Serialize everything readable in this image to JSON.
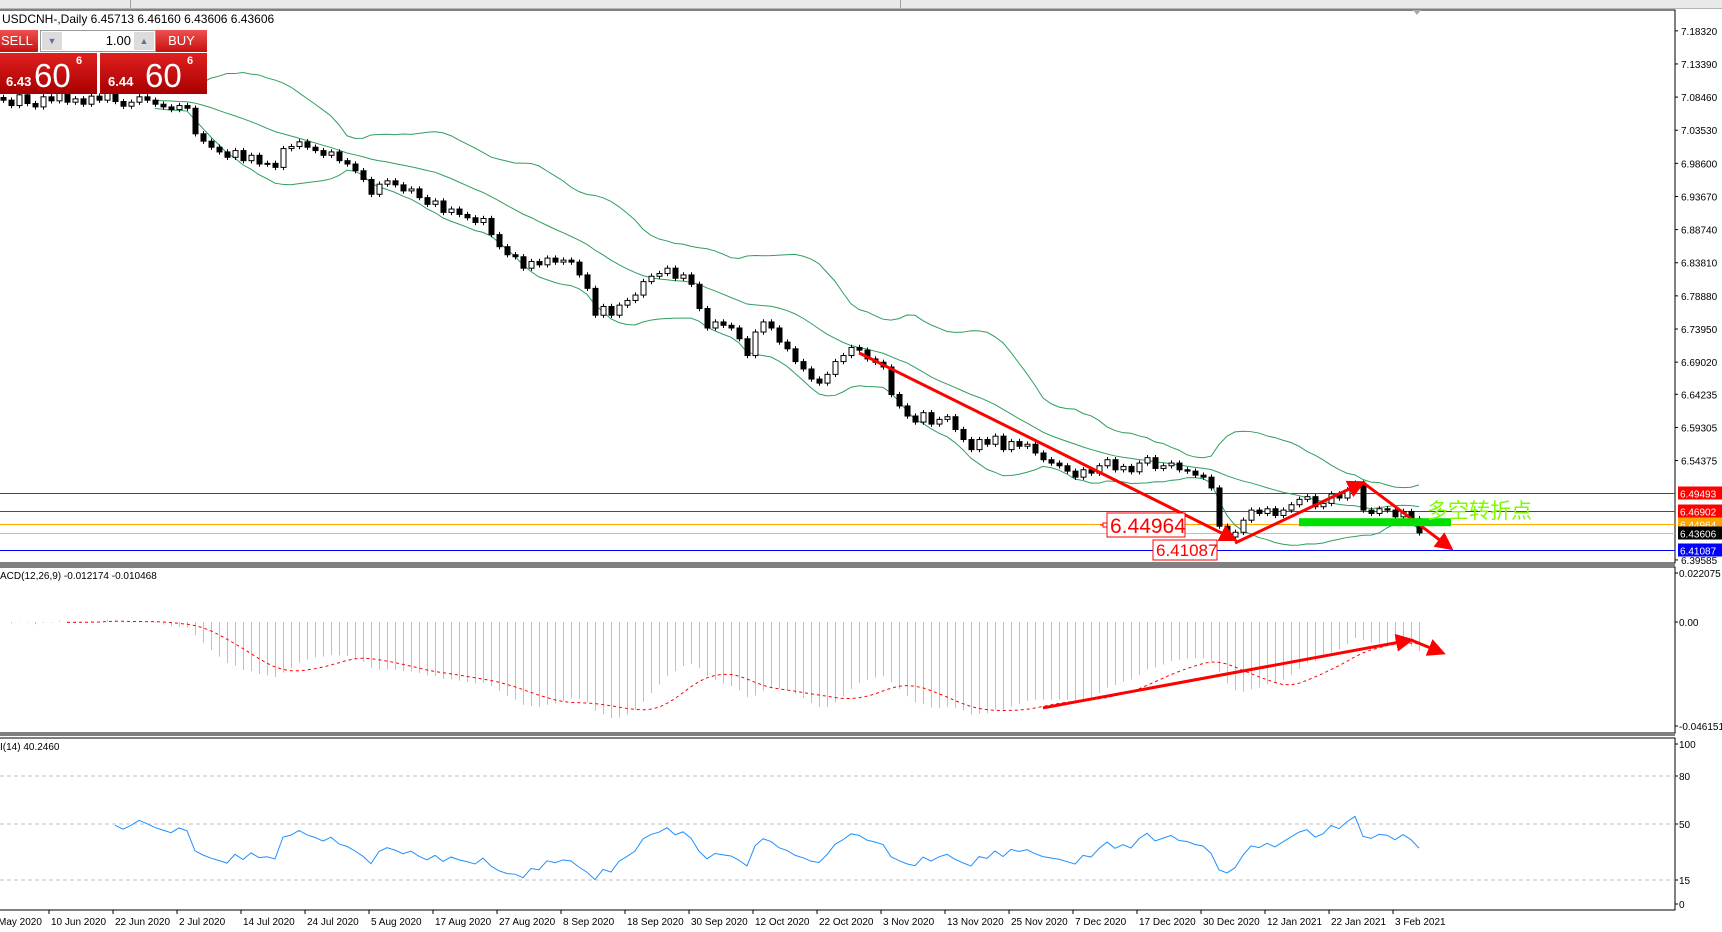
{
  "window": {
    "symbol_line": "USDCNH-,Daily  6.45713 6.46160 6.43606 6.43606"
  },
  "trade_panel": {
    "sell_label": "SELL",
    "buy_label": "BUY",
    "lot": "1.00",
    "sell_price": {
      "big": "6.43",
      "mid": "60",
      "sup": "6"
    },
    "buy_price": {
      "big": "6.44",
      "mid": "60",
      "sup": "6"
    }
  },
  "colors": {
    "bollinger": "#2f9e5e",
    "annotation": "#ff0000",
    "support_bar": "#00e000",
    "rsi": "#1e90ff",
    "macd_hist": "#c0c0c0",
    "macd_signal": "#ff0000"
  },
  "chart_data": {
    "type": "candlestick",
    "symbol": "USDCNH-",
    "timeframe": "Daily",
    "close": [
      7.08,
      7.072,
      7.088,
      7.075,
      7.07,
      7.085,
      7.079,
      7.09,
      7.077,
      7.082,
      7.074,
      7.086,
      7.08,
      7.09,
      7.078,
      7.071,
      7.077,
      7.085,
      7.08,
      7.074,
      7.07,
      7.066,
      7.072,
      7.068,
      7.03,
      7.019,
      7.01,
      7.003,
      6.995,
      7.005,
      6.99,
      6.998,
      6.985,
      6.986,
      6.98,
      7.008,
      7.011,
      7.018,
      7.01,
      7.005,
      6.998,
      7.003,
      6.99,
      6.985,
      6.975,
      6.962,
      6.94,
      6.955,
      6.96,
      6.954,
      6.945,
      6.948,
      6.935,
      6.925,
      6.93,
      6.913,
      6.918,
      6.91,
      6.905,
      6.898,
      6.904,
      6.88,
      6.862,
      6.85,
      6.847,
      6.83,
      6.84,
      6.835,
      6.845,
      6.839,
      6.842,
      6.839,
      6.82,
      6.8,
      6.76,
      6.773,
      6.76,
      6.775,
      6.782,
      6.79,
      6.81,
      6.818,
      6.822,
      6.83,
      6.815,
      6.82,
      6.806,
      6.77,
      6.741,
      6.75,
      6.745,
      6.741,
      6.725,
      6.7,
      6.735,
      6.75,
      6.741,
      6.72,
      6.71,
      6.691,
      6.68,
      6.665,
      6.659,
      6.672,
      6.691,
      6.7,
      6.712,
      6.708,
      6.695,
      6.69,
      6.683,
      6.642,
      6.625,
      6.61,
      6.601,
      6.615,
      6.598,
      6.605,
      6.609,
      6.59,
      6.575,
      6.56,
      6.575,
      6.568,
      6.58,
      6.56,
      6.572,
      6.565,
      6.568,
      6.555,
      6.545,
      6.54,
      6.536,
      6.528,
      6.519,
      6.53,
      6.525,
      6.536,
      6.545,
      6.53,
      6.535,
      6.527,
      6.54,
      6.548,
      6.532,
      6.536,
      6.54,
      6.53,
      6.528,
      6.522,
      6.519,
      6.503,
      6.446,
      6.43,
      6.437,
      6.455,
      6.47,
      6.465,
      6.472,
      6.462,
      6.47,
      6.478,
      6.486,
      6.49,
      6.475,
      6.48,
      6.494,
      6.488,
      6.5,
      6.51,
      6.47,
      6.465,
      6.472,
      6.47,
      6.46,
      6.468,
      6.45713,
      6.43606
    ],
    "price_axis": {
      "min": 6.39585,
      "max": 7.1832,
      "ticks": [
        "7.18320",
        "7.13390",
        "7.08460",
        "7.03530",
        "6.98600",
        "6.93670",
        "6.88740",
        "6.83810",
        "6.78880",
        "6.73950",
        "6.69020",
        "6.64235",
        "6.59305",
        "6.54375",
        "6.39585"
      ]
    },
    "price_levels": [
      {
        "value": "6.49493",
        "color": "#ff0000",
        "text_color": "#ffffff"
      },
      {
        "value": "6.46902",
        "color": "#ff0000",
        "text_color": "#ffffff"
      },
      {
        "value": "6.44964",
        "color": "#ffa500",
        "text_color": "#ffffff"
      },
      {
        "value": "6.43606",
        "color": "#000000",
        "line_color": "#c0c0c0",
        "text_color": "#ffffff"
      },
      {
        "value": "6.41087",
        "color": "#0000ff",
        "text_color": "#ffffff"
      }
    ],
    "date_labels": [
      "May 2020",
      "10 Jun 2020",
      "22 Jun 2020",
      "2 Jul 2020",
      "14 Jul 2020",
      "24 Jul 2020",
      "5 Aug 2020",
      "17 Aug 2020",
      "27 Aug 2020",
      "8 Sep 2020",
      "18 Sep 2020",
      "30 Sep 2020",
      "12 Oct 2020",
      "22 Oct 2020",
      "3 Nov 2020",
      "13 Nov 2020",
      "25 Nov 2020",
      "7 Dec 2020",
      "17 Dec 2020",
      "30 Dec 2020",
      "12 Jan 2021",
      "22 Jan 2021",
      "3 Feb 2021"
    ],
    "indicators": {
      "bollinger": {
        "period": 20,
        "deviation": 2
      },
      "macd": {
        "label": "ACD(12,26,9) -0.012174 -0.010468",
        "fast": 12,
        "slow": 26,
        "signal": 9,
        "axis": {
          "max": 0.022075,
          "min": -0.046151,
          "ticks": [
            "0.022075",
            "0.00",
            "-0.046151"
          ]
        }
      },
      "rsi": {
        "label": "I(14) 40.2460",
        "period": 14,
        "levels": [
          80,
          50,
          15
        ],
        "ticks": [
          "100",
          "80",
          "50",
          "15",
          "0"
        ]
      }
    },
    "annotations": {
      "price_arrows": [
        {
          "from": {
            "date": "29 Oct 2020",
            "price": 6.704
          },
          "to": {
            "date": "4 Jan 2021",
            "price": 6.426
          }
        },
        {
          "from": {
            "date": "4 Jan 2021",
            "price": 6.421
          },
          "to": {
            "date": "26 Jan 2021",
            "price": 6.511
          }
        },
        {
          "from": {
            "date": "26 Jan 2021",
            "price": 6.511
          },
          "to": {
            "date": "10 Feb 2021",
            "price": 6.413
          }
        }
      ],
      "support_bar": {
        "from": "14 Jan 2021",
        "to": "10 Feb 2021",
        "price": 6.452
      },
      "price_labels": [
        "6.44964",
        "6.41087"
      ],
      "text": "多空转折点",
      "macd_arrows": [
        {
          "from": {
            "date": "1 Dec 2020",
            "value": -0.0387
          },
          "to": {
            "date": "3 Feb 2021",
            "value": -0.0081
          }
        },
        {
          "from": {
            "date": "3 Feb 2021",
            "value": -0.0081
          },
          "to": {
            "date": "9 Feb 2021",
            "value": -0.014
          }
        }
      ]
    }
  }
}
